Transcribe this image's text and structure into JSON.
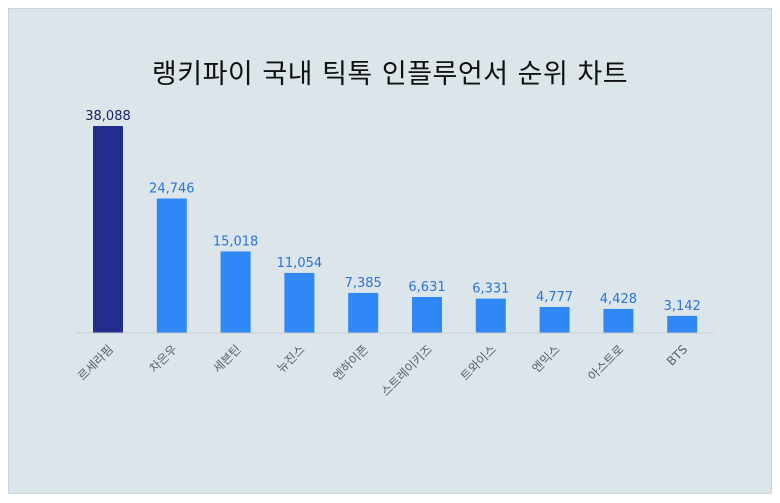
{
  "title": "랭키파이 국내 틱톡 인플루언서 순위 차트",
  "chart_data": {
    "type": "bar",
    "title": "랭키파이 국내 틱톡 인플루언서 순위 차트",
    "categories": [
      "르세라핌",
      "차은우",
      "세븐틴",
      "뉴진스",
      "엔하이픈",
      "스트레이키즈",
      "트와이스",
      "엔믹스",
      "아스트로",
      "BTS"
    ],
    "values": [
      38088,
      24746,
      15018,
      11054,
      7385,
      6631,
      6331,
      4777,
      4428,
      3142
    ],
    "value_labels": [
      "38,088",
      "24,746",
      "15,018",
      "11,054",
      "7,385",
      "6,631",
      "6,331",
      "4,777",
      "4,428",
      "3,142"
    ],
    "ylim": [
      0,
      38088
    ],
    "grid": false,
    "colors": {
      "highlight_bar": "#232d8c",
      "bar": "#2f88f5",
      "highlight_label": "#1a1f5c",
      "label": "#2a74d6",
      "axis": "#c8d0d6",
      "background": "#dce5ea"
    }
  }
}
